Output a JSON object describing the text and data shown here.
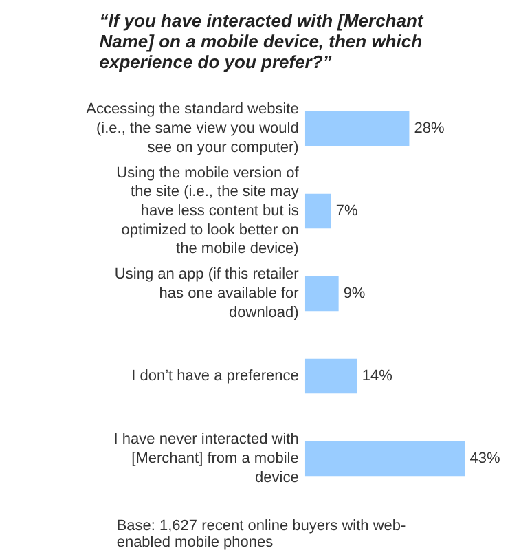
{
  "chart_data": {
    "type": "bar",
    "orientation": "horizontal",
    "title": "“If you have interacted with [Merchant Name] on a mobile device, then which experience do you prefer?”",
    "categories": [
      "Accessing the standard website (i.e., the same view you would see on your computer)",
      "Using the mobile version of the site (i.e., the site may have less content but is optimized to look better on the mobile device)",
      "Using an app (if this retailer has one available for download)",
      "I don’t have a preference",
      "I have never interacted with [Merchant] from a mobile device"
    ],
    "values": [
      28,
      7,
      9,
      14,
      43
    ],
    "value_labels": [
      "28%",
      "7%",
      "9%",
      "14%",
      "43%"
    ],
    "color": "#99ccff",
    "grid": false,
    "annotations": [
      "Base: 1,627 recent online buyers with web-enabled mobile phones"
    ]
  }
}
